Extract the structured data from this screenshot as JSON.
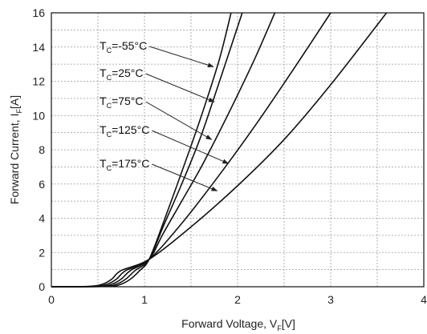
{
  "chart_data": {
    "type": "line",
    "title": "",
    "xlabel": {
      "main": "Forward Voltage, V",
      "sub": "F",
      "unit": "[V]"
    },
    "ylabel": {
      "main": "Forward Current, I",
      "sub": "F",
      "unit": "[A]"
    },
    "xlim": [
      0,
      4
    ],
    "ylim": [
      0,
      16
    ],
    "xticks": [
      0,
      1,
      2,
      3,
      4
    ],
    "yticks": [
      0,
      2,
      4,
      6,
      8,
      10,
      12,
      14,
      16
    ],
    "grid": true,
    "series": [
      {
        "name": "TC=-55°C",
        "label": {
          "main": "T",
          "sub": "C",
          "rest": "=-55°C"
        },
        "x": [
          0.0,
          0.6,
          0.75,
          0.85,
          0.95,
          1.05,
          1.2,
          1.4,
          1.6,
          1.8,
          1.93
        ],
        "y": [
          0,
          0.02,
          0.15,
          0.45,
          0.95,
          1.6,
          3.7,
          6.7,
          9.8,
          13.2,
          16
        ]
      },
      {
        "name": "TC=25°C",
        "label": {
          "main": "T",
          "sub": "C",
          "rest": "=25°C"
        },
        "x": [
          0.0,
          0.55,
          0.7,
          0.8,
          0.9,
          1.05,
          1.2,
          1.4,
          1.6,
          1.8,
          2.05
        ],
        "y": [
          0,
          0.02,
          0.15,
          0.45,
          0.95,
          1.6,
          3.5,
          6.0,
          8.7,
          11.9,
          16
        ]
      },
      {
        "name": "TC=75°C",
        "label": {
          "main": "T",
          "sub": "C",
          "rest": "=75°C"
        },
        "x": [
          0.0,
          0.5,
          0.65,
          0.75,
          0.85,
          1.05,
          1.2,
          1.4,
          1.6,
          1.8,
          2.0,
          2.2,
          2.4
        ],
        "y": [
          0,
          0.02,
          0.15,
          0.45,
          0.95,
          1.6,
          3.1,
          5.0,
          6.9,
          9.0,
          11.2,
          13.5,
          16
        ]
      },
      {
        "name": "TC=125°C",
        "label": {
          "main": "T",
          "sub": "C",
          "rest": "=125°C"
        },
        "x": [
          0.0,
          0.45,
          0.6,
          0.7,
          0.8,
          1.05,
          1.4,
          1.8,
          2.2,
          2.6,
          3.0
        ],
        "y": [
          0,
          0.02,
          0.15,
          0.45,
          0.95,
          1.6,
          3.7,
          6.5,
          9.5,
          12.7,
          16
        ]
      },
      {
        "name": "TC=175°C",
        "label": {
          "main": "T",
          "sub": "C",
          "rest": "=175°C"
        },
        "x": [
          0.0,
          0.4,
          0.55,
          0.65,
          0.75,
          1.05,
          1.5,
          2.0,
          2.5,
          3.0,
          3.6
        ],
        "y": [
          0,
          0.02,
          0.15,
          0.45,
          0.95,
          1.6,
          3.5,
          5.9,
          8.6,
          11.8,
          16
        ]
      }
    ],
    "annotations": [
      {
        "series": "TC=-55°C",
        "arrow_tip": [
          1.74,
          12.85
        ]
      },
      {
        "series": "TC=25°C",
        "arrow_tip": [
          1.75,
          10.8
        ]
      },
      {
        "series": "TC=75°C",
        "arrow_tip": [
          1.72,
          8.6
        ]
      },
      {
        "series": "TC=125°C",
        "arrow_tip": [
          1.9,
          7.2
        ]
      },
      {
        "series": "TC=175°C",
        "arrow_tip": [
          1.78,
          5.6
        ]
      }
    ]
  }
}
